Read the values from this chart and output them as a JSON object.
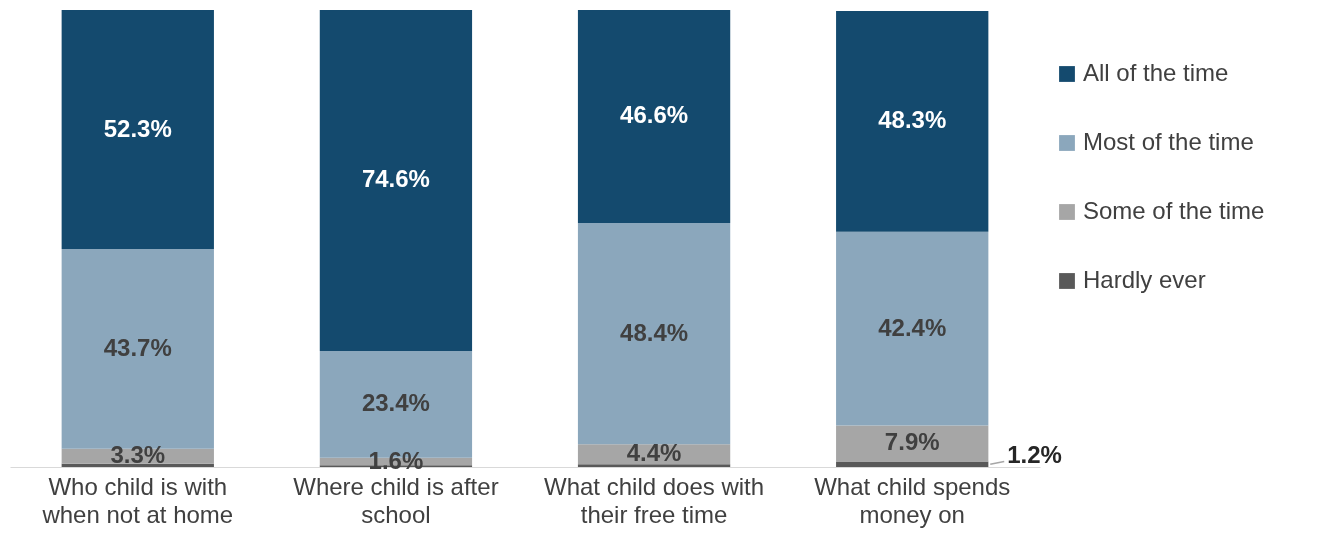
{
  "chart_data": {
    "type": "bar",
    "stacked": true,
    "categories": [
      "Who child is with when not at home",
      "Where child is after school",
      "What child does with their free time",
      "What child spends money on"
    ],
    "series": [
      {
        "name": "Hardly ever",
        "color": "#595959",
        "values": [
          0.7,
          0.4,
          0.6,
          1.2
        ],
        "value_labels": [
          null,
          null,
          null,
          "1.2%"
        ]
      },
      {
        "name": "Some of the time",
        "color": "#a6a6a6",
        "values": [
          3.3,
          1.6,
          4.4,
          7.9
        ],
        "value_labels": [
          "3.3%",
          "1.6%",
          "4.4%",
          "7.9%"
        ]
      },
      {
        "name": "Most of the time",
        "color": "#8ba7bc",
        "values": [
          43.7,
          23.4,
          48.4,
          42.4
        ],
        "value_labels": [
          "43.7%",
          "23.4%",
          "48.4%",
          "42.4%"
        ]
      },
      {
        "name": "All of the time",
        "color": "#144a6e",
        "values": [
          52.3,
          74.6,
          46.6,
          48.3
        ],
        "value_labels": [
          "52.3%",
          "74.6%",
          "46.6%",
          "48.3%"
        ]
      }
    ],
    "legend": "right",
    "tick_labels": "x"
  }
}
